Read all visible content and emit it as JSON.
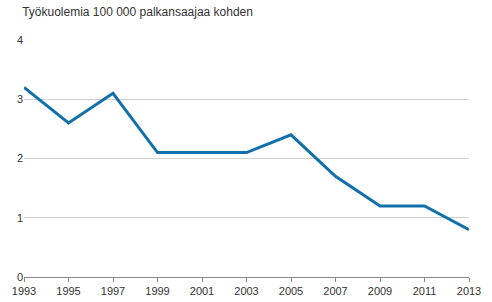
{
  "chart_data": {
    "type": "line",
    "title": "Työkuolemia 100 000 palkansaajaa kohden",
    "x": [
      1993,
      1995,
      1997,
      1999,
      2001,
      2003,
      2005,
      2007,
      2009,
      2011,
      2013
    ],
    "values": [
      3.2,
      2.6,
      3.1,
      2.1,
      2.1,
      2.1,
      2.4,
      1.7,
      1.2,
      1.2,
      0.8
    ],
    "color": "#1170aa",
    "xlim": [
      1993,
      2013
    ],
    "xticks": [
      1993,
      1995,
      1997,
      1999,
      2001,
      2003,
      2005,
      2007,
      2009,
      2011,
      2013
    ],
    "ylim": [
      0,
      4
    ],
    "yticks": [
      0,
      1,
      2,
      3,
      4
    ],
    "grid": true
  }
}
